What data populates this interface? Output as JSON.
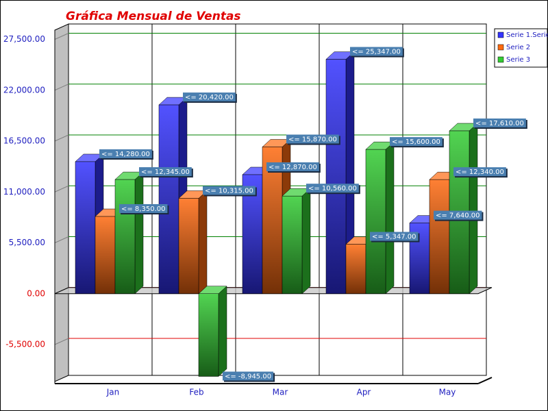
{
  "chart_data": {
    "type": "bar3d",
    "title": "Gráfica Mensual de Ventas",
    "categories": [
      "Jan",
      "Feb",
      "Mar",
      "Apr",
      "May"
    ],
    "series": [
      {
        "name": "Serie 1.Serie",
        "color": "#3333ff",
        "values": [
          14280,
          20420,
          12870,
          25347,
          7640
        ],
        "value_labels": [
          "<= 14,280.00",
          "<= 20,420.00",
          "<= 12,870.00",
          "<= 25,347.00",
          "<= 7,640.00"
        ]
      },
      {
        "name": "Serie 2",
        "color": "#ff6a10",
        "values": [
          8350,
          10315,
          15870,
          5347,
          12340
        ],
        "value_labels": [
          "<= 8,350.00",
          "<= 10,315.00",
          "<= 15,870.00",
          "<= 5,347.00",
          "<= 12,340.00"
        ]
      },
      {
        "name": "Serie 3",
        "color": "#33cc33",
        "values": [
          12345,
          -8945,
          10560,
          15600,
          17610
        ],
        "value_labels": [
          "<= 12,345.00",
          "<= -8,945.00",
          "<= 10,560.00",
          "<= 15,600.00",
          "<= 17,610.00"
        ]
      }
    ],
    "ylim": [
      -9500,
      28500
    ],
    "yticks": [
      {
        "value": -5500,
        "label": "-5,500.00"
      },
      {
        "value": 0,
        "label": "0.00"
      },
      {
        "value": 5500,
        "label": "5,500.00"
      },
      {
        "value": 11000,
        "label": "11,000.00"
      },
      {
        "value": 16500,
        "label": "16,500.00"
      },
      {
        "value": 22000,
        "label": "22,000.00"
      },
      {
        "value": 27500,
        "label": "27,500.00"
      }
    ],
    "grid": true,
    "legend": "top-right"
  }
}
